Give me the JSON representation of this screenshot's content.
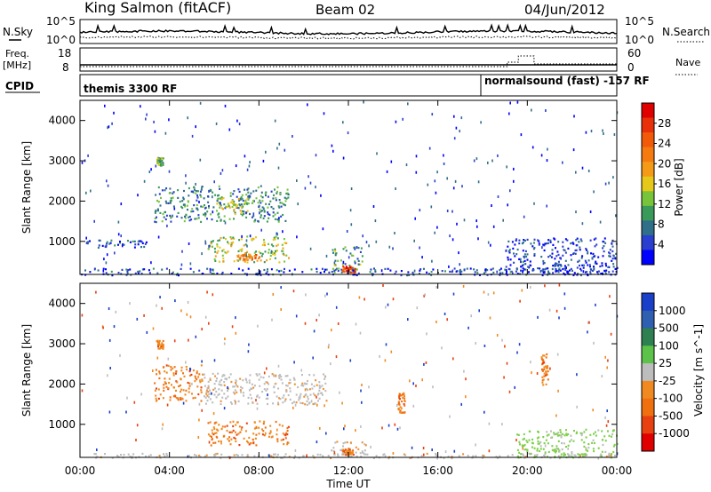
{
  "header": {
    "station": "King Salmon (fitACF)",
    "beam": "Beam 02",
    "date": "04/Jun/2012"
  },
  "top_panels": {
    "nsky_label": "N.Sky",
    "nsky_ticks": [
      "10^5",
      "10^0"
    ],
    "nsearch_ticks": [
      "10^5",
      "10^0"
    ],
    "nsearch_label": "N.Search",
    "freq_label": "Freq.",
    "freq_unit": "[MHz]",
    "freq_ticks": [
      "18",
      "8"
    ],
    "nave_ticks": [
      "60",
      "0"
    ],
    "nave_label": "Nave",
    "cpid_label": "CPID",
    "cpid_modes": [
      "themis 3300 RF",
      "normalsound (fast) -157 RF"
    ]
  },
  "chart_data": [
    {
      "type": "heatmap",
      "title": "",
      "xlabel": "Time UT",
      "ylabel": "Slant Range [km]",
      "x_ticks": [
        "00:00",
        "04:00",
        "08:00",
        "12:00",
        "16:00",
        "20:00",
        "00:00"
      ],
      "y_ticks": [
        "1000",
        "2000",
        "3000",
        "4000"
      ],
      "ylim": [
        180,
        4500
      ],
      "xlim_hours": [
        0,
        24
      ],
      "colorbar": {
        "label": "Power [dB]",
        "ticks": [
          "4",
          "8",
          "12",
          "16",
          "20",
          "24",
          "28"
        ],
        "colors": [
          "#0000ff",
          "#2a3fd0",
          "#2f6f8a",
          "#3a9a5a",
          "#77c43a",
          "#e6c81a",
          "#f59a16",
          "#f57a10",
          "#f25a0a",
          "#e8300a",
          "#e00000"
        ]
      },
      "regions": [
        {
          "t0": 3.3,
          "t1": 9.3,
          "r0": 1500,
          "r1": 2400,
          "level": 0.25
        },
        {
          "t0": 6.0,
          "t1": 7.5,
          "r0": 1700,
          "r1": 2100,
          "level": 0.45
        },
        {
          "t0": 5.7,
          "t1": 9.3,
          "r0": 500,
          "r1": 1150,
          "level": 0.45
        },
        {
          "t0": 7.0,
          "t1": 8.0,
          "r0": 550,
          "r1": 700,
          "level": 0.7
        },
        {
          "t0": 11.2,
          "t1": 12.6,
          "r0": 250,
          "r1": 900,
          "level": 0.3
        },
        {
          "t0": 11.7,
          "t1": 12.3,
          "r0": 250,
          "r1": 400,
          "level": 0.85
        },
        {
          "t0": 0.0,
          "t1": 24.0,
          "r0": 180,
          "r1": 350,
          "level": 0.1
        },
        {
          "t0": 0.0,
          "t1": 3.0,
          "r0": 850,
          "r1": 1050,
          "level": 0.15
        },
        {
          "t0": 3.4,
          "t1": 3.7,
          "r0": 2900,
          "r1": 3100,
          "level": 0.35
        },
        {
          "t0": 19.0,
          "t1": 24.0,
          "r0": 180,
          "r1": 1100,
          "level": 0.08
        }
      ]
    },
    {
      "type": "heatmap",
      "title": "",
      "xlabel": "Time UT",
      "ylabel": "Slant Range [km]",
      "x_ticks": [
        "00:00",
        "04:00",
        "08:00",
        "12:00",
        "16:00",
        "20:00",
        "00:00"
      ],
      "y_ticks": [
        "1000",
        "2000",
        "3000",
        "4000"
      ],
      "ylim": [
        180,
        4500
      ],
      "xlim_hours": [
        0,
        24
      ],
      "colorbar": {
        "label": "Velocity [m s^-1]",
        "ticks": [
          "1000",
          "500",
          "100",
          "25",
          "-25",
          "-100",
          "-500",
          "-1000"
        ],
        "colors": [
          "#1a3fc8",
          "#2f5fb0",
          "#2e8050",
          "#5cc24a",
          "#bdbdbd",
          "#f08a20",
          "#f07010",
          "#e84010",
          "#e00000"
        ]
      },
      "regions": [
        {
          "t0": 3.3,
          "t1": 5.5,
          "r0": 1600,
          "r1": 2500,
          "cls": "orange"
        },
        {
          "t0": 5.5,
          "t1": 11.0,
          "r0": 1500,
          "r1": 2300,
          "cls": "gray"
        },
        {
          "t0": 5.7,
          "t1": 9.3,
          "r0": 500,
          "r1": 1100,
          "cls": "orange"
        },
        {
          "t0": 11.2,
          "t1": 12.8,
          "r0": 200,
          "r1": 600,
          "cls": "gray"
        },
        {
          "t0": 11.7,
          "t1": 12.2,
          "r0": 250,
          "r1": 400,
          "cls": "orange"
        },
        {
          "t0": 14.2,
          "t1": 14.5,
          "r0": 1300,
          "r1": 1800,
          "cls": "orange"
        },
        {
          "t0": 3.4,
          "t1": 3.7,
          "r0": 2900,
          "r1": 3100,
          "cls": "orange"
        },
        {
          "t0": 0.0,
          "t1": 24.0,
          "r0": 180,
          "r1": 300,
          "cls": "gray"
        },
        {
          "t0": 19.5,
          "t1": 24.0,
          "r0": 180,
          "r1": 900,
          "cls": "green"
        },
        {
          "t0": 20.6,
          "t1": 20.9,
          "r0": 2000,
          "r1": 2800,
          "cls": "orange"
        }
      ]
    }
  ]
}
